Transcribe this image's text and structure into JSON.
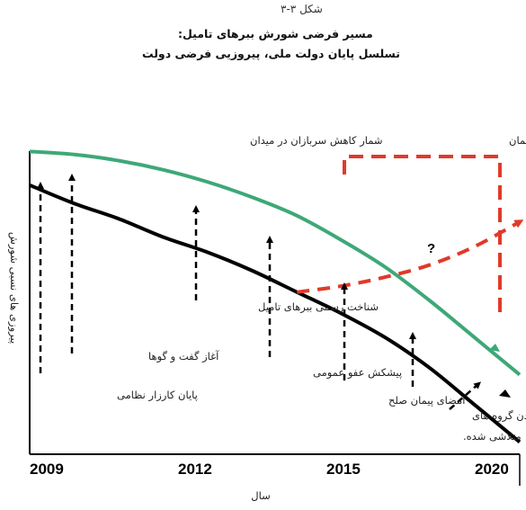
{
  "figure_label": "شکل ۳-۳",
  "title_line1": "مسیر فرضی شورش ببرهای تامیل:",
  "title_line2": "تسلسل پایان دولت ملی، پیروزیی فرضی دولت",
  "colors": {
    "black_line": "#000000",
    "green_line": "#3ea878",
    "red_dashed": "#e03a2a",
    "axis": "#000000"
  },
  "chart_data": {
    "type": "line",
    "xlabel": "سال",
    "ylabel": "پیروزی های نسبی شورش",
    "x_ticks": [
      "2009",
      "2012",
      "2015",
      "2020"
    ],
    "x_tick_values": [
      2009,
      2012,
      2015,
      2020
    ],
    "xlim": [
      2009,
      2020
    ],
    "grid": false,
    "series": [
      {
        "color": "#000000",
        "x": [
          2009,
          2010,
          2011,
          2012,
          2013,
          2014,
          2015,
          2016,
          2017,
          2018,
          2019,
          2020
        ],
        "y": [
          88,
          82,
          77,
          71,
          66,
          60,
          53,
          46,
          38,
          28,
          16,
          4
        ]
      },
      {
        "color": "#3ea878",
        "x": [
          2009,
          2010,
          2011,
          2012,
          2013,
          2014,
          2015,
          2016,
          2017,
          2018,
          2019,
          2020
        ],
        "y": [
          99,
          98,
          96,
          93,
          89,
          84,
          78,
          70,
          61,
          50,
          38,
          26
        ]
      },
      {
        "color": "#e03a2a",
        "style": "dashed",
        "x": [
          2015,
          2016,
          2017,
          2018,
          2019,
          2020
        ],
        "y": [
          53,
          55,
          58,
          62,
          68,
          76
        ]
      }
    ],
    "annotations": [
      {
        "text": "پایان کارزار نظامی",
        "x": 2009
      },
      {
        "text": "آغاز گفت و گوها",
        "x": 2010
      },
      {
        "text": "شناخت رسمی ببرهای تامیل",
        "x": 2012
      },
      {
        "text": "پیشکش عفو عمومی",
        "x": 2013
      },
      {
        "text": "امضای پیمان صلح",
        "x": 2015
      },
      {
        "text": "فعال شدن گروه های",
        "x": 2019
      },
      {
        "text": "متلاشی شده.",
        "x": 2019
      },
      {
        "text": "شمار کاهش سربازان در میدان",
        "x": 2011
      },
      {
        "text": "از سر گرفتن خشونت پس از امضای پیمان",
        "x": 2018
      },
      {
        "text": "?",
        "x": 2017
      }
    ]
  }
}
